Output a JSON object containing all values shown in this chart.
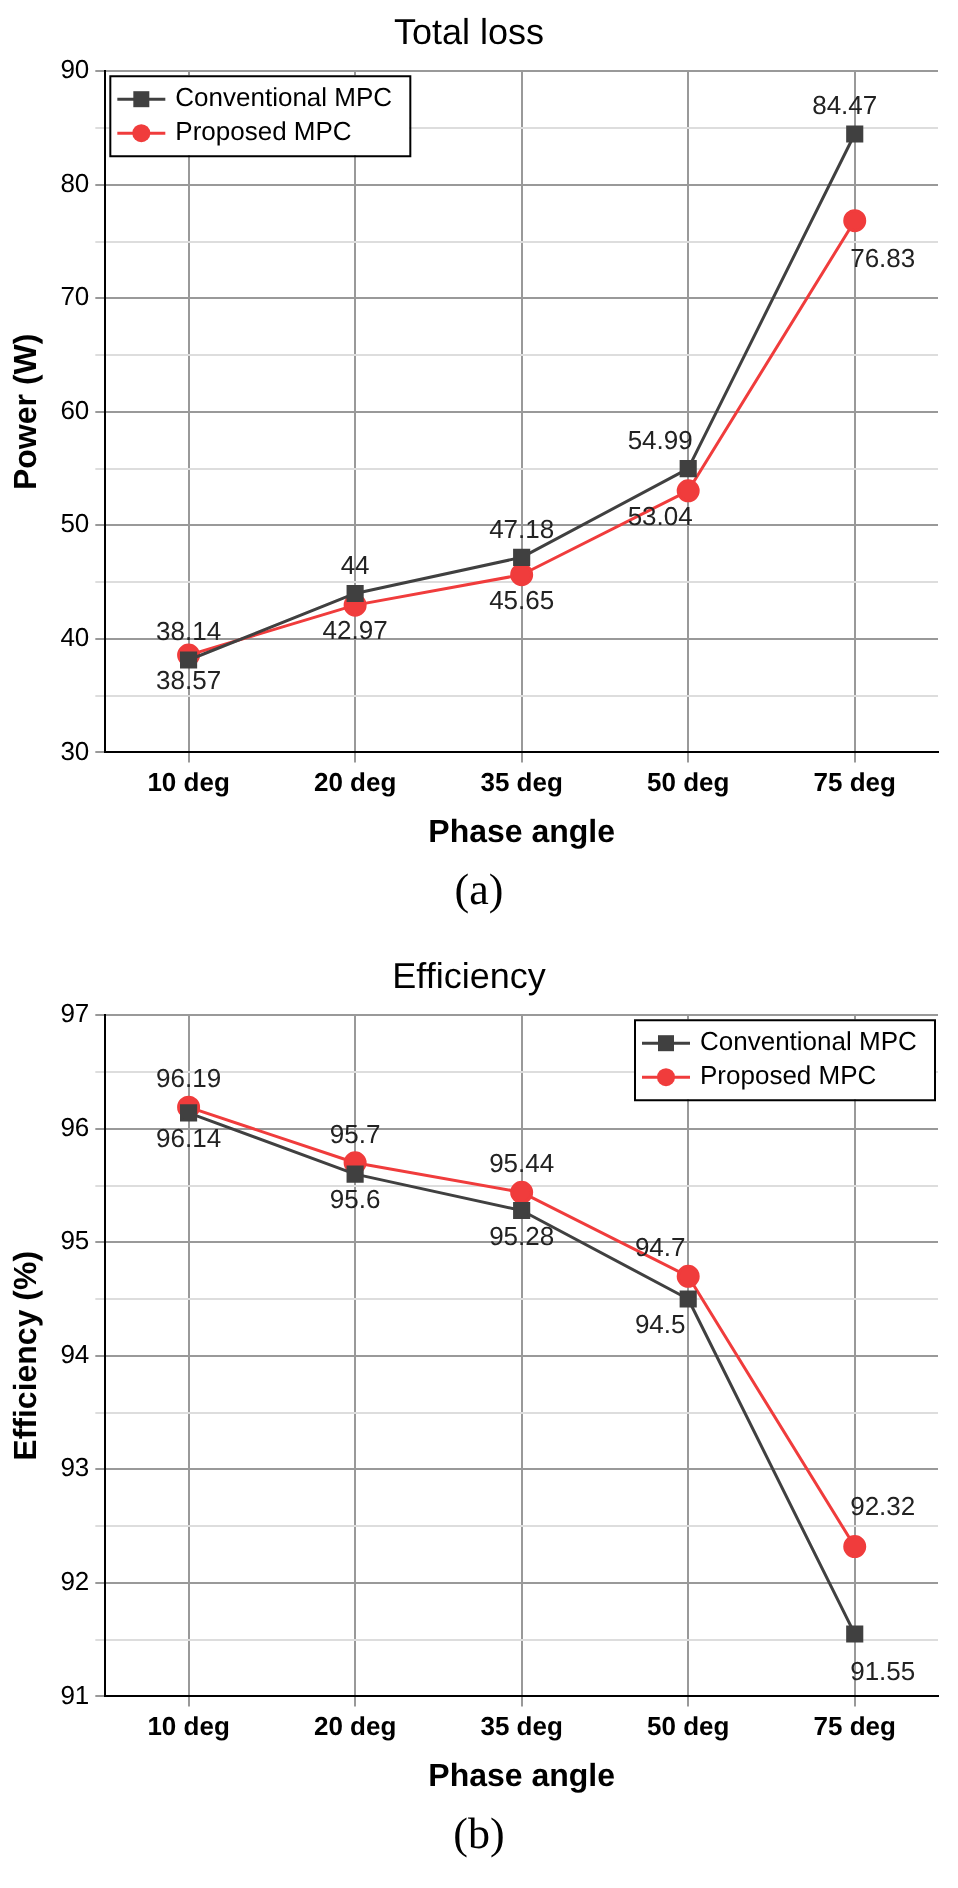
{
  "chart_data": [
    {
      "type": "line",
      "title": "Total loss",
      "xlabel": "Phase angle",
      "ylabel": "Power (W)",
      "categories": [
        "10 deg",
        "20 deg",
        "35 deg",
        "50 deg",
        "75 deg"
      ],
      "series": [
        {
          "name": "Conventional MPC",
          "color": "#404040",
          "marker": "square",
          "values": [
            38.14,
            44,
            47.18,
            54.99,
            84.47
          ]
        },
        {
          "name": "Proposed MPC",
          "color": "#f03c3c",
          "marker": "circle",
          "values": [
            38.57,
            42.97,
            45.65,
            53.04,
            76.83
          ]
        }
      ],
      "ylim": [
        30,
        90
      ],
      "yticks": [
        30,
        40,
        50,
        60,
        70,
        80,
        90
      ],
      "grid": true,
      "legend": "top left",
      "data_labels": true,
      "annotations": [
        "(a)"
      ]
    },
    {
      "type": "line",
      "title": "Efficiency",
      "xlabel": "Phase angle",
      "ylabel": "Efficiency (%)",
      "categories": [
        "10 deg",
        "20 deg",
        "35 deg",
        "50 deg",
        "75 deg"
      ],
      "series": [
        {
          "name": "Conventional MPC",
          "color": "#404040",
          "marker": "square",
          "values": [
            96.14,
            95.6,
            95.28,
            94.5,
            91.55
          ]
        },
        {
          "name": "Proposed MPC",
          "color": "#f03c3c",
          "marker": "circle",
          "values": [
            96.19,
            95.7,
            95.44,
            94.7,
            92.32
          ]
        }
      ],
      "ylim": [
        91,
        97
      ],
      "yticks": [
        91,
        92,
        93,
        94,
        95,
        96,
        97
      ],
      "grid": true,
      "legend": "top right",
      "data_labels": true,
      "annotations": [
        "(b)"
      ]
    }
  ]
}
